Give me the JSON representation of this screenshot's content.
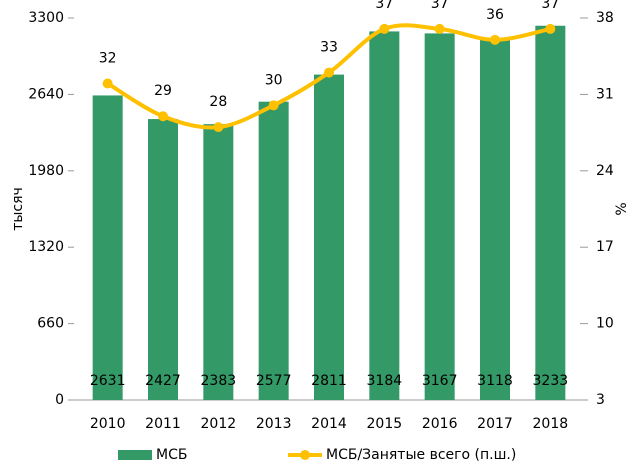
{
  "chart_data": {
    "type": "bar_line",
    "y_label": "тысяч",
    "y2_label": "%",
    "categories": [
      "2010",
      "2011",
      "2012",
      "2013",
      "2014",
      "2015",
      "2016",
      "2017",
      "2018"
    ],
    "series": [
      {
        "name": "МСБ",
        "type": "bar",
        "color": "#339966",
        "values": [
          2631,
          2427,
          2383,
          2577,
          2811,
          3184,
          3167,
          3118,
          3233
        ]
      },
      {
        "name": "МСБ/Занятые всего (п.ш.)",
        "type": "line",
        "axis": "y2",
        "color": "#ffc000",
        "values": [
          32,
          29,
          28,
          30,
          33,
          37,
          37,
          36,
          37
        ]
      }
    ],
    "ylim": [
      0,
      3300
    ],
    "yticks": [
      0,
      660,
      1320,
      1980,
      2640,
      3300
    ],
    "y2lim": [
      3,
      38
    ],
    "y2ticks": [
      3,
      10,
      17,
      24,
      31,
      38
    ],
    "legend": "bottom"
  }
}
